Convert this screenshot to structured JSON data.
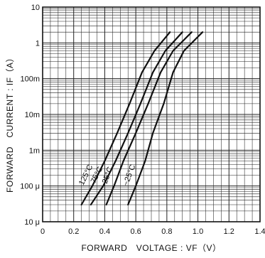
{
  "chart_data": {
    "type": "line",
    "title": "",
    "xlabel": "FORWARD　VOLTAGE : VF（V）",
    "ylabel": "FORWARD　CURRENT : IF（A）",
    "xlim": [
      0,
      1.4
    ],
    "ylim": [
      1e-05,
      10
    ],
    "yscale": "log",
    "grid": true,
    "x_ticks": [
      {
        "value": 0,
        "label": "0"
      },
      {
        "value": 0.2,
        "label": "0.2"
      },
      {
        "value": 0.4,
        "label": "0.4"
      },
      {
        "value": 0.6,
        "label": "0.6"
      },
      {
        "value": 0.8,
        "label": "0.8"
      },
      {
        "value": 1.0,
        "label": "1.0"
      },
      {
        "value": 1.2,
        "label": "1.2"
      },
      {
        "value": 1.4,
        "label": "1.4"
      }
    ],
    "y_ticks": [
      {
        "value": 10,
        "label": "10"
      },
      {
        "value": 1,
        "label": "1"
      },
      {
        "value": 0.1,
        "label": "100m"
      },
      {
        "value": 0.01,
        "label": "10m"
      },
      {
        "value": 0.001,
        "label": "1m"
      },
      {
        "value": 0.0001,
        "label": "100 μ"
      },
      {
        "value": 1e-05,
        "label": "10 μ"
      }
    ],
    "series": [
      {
        "name": "125°C",
        "x": [
          0.25,
          0.32,
          0.4,
          0.48,
          0.56,
          0.64,
          0.72,
          0.82
        ],
        "y": [
          3e-05,
          0.0001,
          0.0005,
          0.003,
          0.02,
          0.15,
          0.6,
          2
        ]
      },
      {
        "name": "75°C",
        "x": [
          0.31,
          0.39,
          0.47,
          0.55,
          0.63,
          0.71,
          0.79,
          0.9
        ],
        "y": [
          3e-05,
          0.0001,
          0.0005,
          0.003,
          0.02,
          0.15,
          0.6,
          2
        ]
      },
      {
        "name": "25°C",
        "x": [
          0.41,
          0.46,
          0.52,
          0.6,
          0.68,
          0.76,
          0.84,
          0.96
        ],
        "y": [
          3e-05,
          0.0001,
          0.0005,
          0.003,
          0.02,
          0.15,
          0.6,
          2
        ]
      },
      {
        "name": "−25°C",
        "x": [
          0.55,
          0.6,
          0.66,
          0.71,
          0.78,
          0.84,
          0.91,
          1.03
        ],
        "y": [
          3e-05,
          0.0001,
          0.0005,
          0.003,
          0.02,
          0.15,
          0.6,
          2
        ]
      }
    ]
  }
}
